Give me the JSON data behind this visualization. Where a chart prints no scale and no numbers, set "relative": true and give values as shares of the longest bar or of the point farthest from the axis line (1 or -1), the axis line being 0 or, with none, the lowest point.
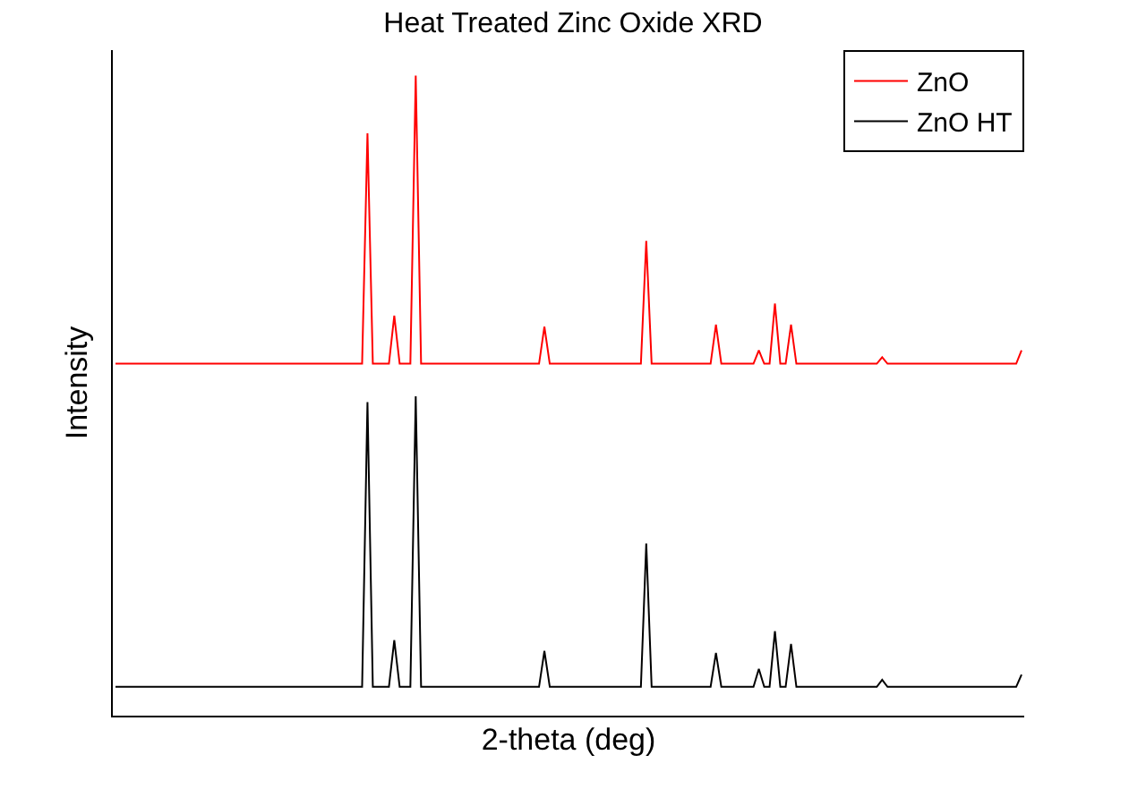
{
  "chart_data": {
    "type": "line",
    "title": "Heat Treated Zinc Oxide XRD",
    "xlabel": "2-theta (deg)",
    "ylabel": "Intensity",
    "relative": true,
    "legend": "top right",
    "marker": "none",
    "line_style": "solid",
    "categories": [
      null,
      null,
      null,
      null,
      null,
      null,
      null,
      null,
      null,
      null,
      null,
      null,
      null,
      null,
      null,
      null,
      null,
      null,
      null,
      null,
      null,
      null,
      null,
      null,
      null,
      null,
      null,
      null,
      null,
      null,
      null,
      null,
      null,
      null,
      null,
      null,
      null,
      null,
      null,
      null,
      null,
      null,
      null,
      null,
      null,
      null,
      null,
      null,
      null,
      null,
      null,
      null,
      null,
      null,
      null,
      null,
      null,
      null,
      null,
      null,
      null,
      null,
      null,
      null,
      null,
      null,
      null,
      null,
      null,
      null,
      null,
      null,
      null,
      null,
      null,
      null,
      null,
      null,
      null,
      null,
      null,
      null,
      null,
      null,
      null,
      null,
      null,
      null,
      null,
      null,
      null,
      null,
      null,
      null,
      null,
      null,
      null,
      null,
      null,
      null,
      null,
      null,
      null,
      null,
      null,
      null,
      null,
      null,
      null,
      null,
      null,
      null,
      null,
      null,
      null,
      null,
      null,
      null,
      null,
      null,
      null,
      null,
      null,
      null,
      null,
      null,
      null,
      null,
      null,
      null,
      null,
      null,
      null,
      null,
      null,
      null,
      null,
      null,
      null,
      null,
      null,
      null,
      null,
      null,
      null,
      null,
      null,
      null,
      null,
      null,
      null,
      null,
      null,
      null,
      null,
      null,
      null,
      null,
      null,
      null,
      null,
      null,
      null,
      null,
      null,
      null,
      null,
      null,
      null,
      null
    ],
    "series": [
      {
        "name": "ZnO",
        "color": "#ff0000",
        "values": [
          0.55,
          0.55,
          0.55,
          0.55,
          0.55,
          0.55,
          0.55,
          0.55,
          0.55,
          0.55,
          0.55,
          0.55,
          0.55,
          0.55,
          0.55,
          0.55,
          0.55,
          0.55,
          0.55,
          0.55,
          0.55,
          0.55,
          0.55,
          0.55,
          0.55,
          0.55,
          0.55,
          0.55,
          0.55,
          0.55,
          0.55,
          0.55,
          0.55,
          0.55,
          0.55,
          0.55,
          0.55,
          0.55,
          0.55,
          0.55,
          0.55,
          0.55,
          0.55,
          0.55,
          0.55,
          0.55,
          0.55,
          0.91,
          0.55,
          0.55,
          0.55,
          0.55,
          0.625,
          0.55,
          0.55,
          0.55,
          1.0,
          0.55,
          0.55,
          0.55,
          0.55,
          0.55,
          0.55,
          0.55,
          0.55,
          0.55,
          0.55,
          0.55,
          0.55,
          0.55,
          0.55,
          0.55,
          0.55,
          0.55,
          0.55,
          0.55,
          0.55,
          0.55,
          0.55,
          0.55,
          0.608,
          0.55,
          0.55,
          0.55,
          0.55,
          0.55,
          0.55,
          0.55,
          0.55,
          0.55,
          0.55,
          0.55,
          0.55,
          0.55,
          0.55,
          0.55,
          0.55,
          0.55,
          0.55,
          0.742,
          0.55,
          0.55,
          0.55,
          0.55,
          0.55,
          0.55,
          0.55,
          0.55,
          0.55,
          0.55,
          0.55,
          0.55,
          0.611,
          0.55,
          0.55,
          0.55,
          0.55,
          0.55,
          0.55,
          0.55,
          0.571,
          0.55,
          0.55,
          0.644,
          0.55,
          0.55,
          0.611,
          0.55,
          0.55,
          0.55,
          0.55,
          0.55,
          0.55,
          0.55,
          0.55,
          0.55,
          0.55,
          0.55,
          0.55,
          0.55,
          0.55,
          0.55,
          0.55,
          0.56,
          0.55,
          0.55,
          0.55,
          0.55,
          0.55,
          0.55,
          0.55,
          0.55,
          0.55,
          0.55,
          0.55,
          0.55,
          0.55,
          0.55,
          0.55,
          0.55,
          0.55,
          0.55,
          0.55,
          0.55,
          0.55,
          0.55,
          0.55,
          0.55,
          0.55,
          0.571
        ]
      },
      {
        "name": "ZnO HT",
        "color": "#000000",
        "values": [
          0.045,
          0.045,
          0.045,
          0.045,
          0.045,
          0.045,
          0.045,
          0.045,
          0.045,
          0.045,
          0.045,
          0.045,
          0.045,
          0.045,
          0.045,
          0.045,
          0.045,
          0.045,
          0.045,
          0.045,
          0.045,
          0.045,
          0.045,
          0.045,
          0.045,
          0.045,
          0.045,
          0.045,
          0.045,
          0.045,
          0.045,
          0.045,
          0.045,
          0.045,
          0.045,
          0.045,
          0.045,
          0.045,
          0.045,
          0.045,
          0.045,
          0.045,
          0.045,
          0.045,
          0.045,
          0.045,
          0.045,
          0.49,
          0.045,
          0.045,
          0.045,
          0.045,
          0.118,
          0.045,
          0.045,
          0.045,
          0.499,
          0.045,
          0.045,
          0.045,
          0.045,
          0.045,
          0.045,
          0.045,
          0.045,
          0.045,
          0.045,
          0.045,
          0.045,
          0.045,
          0.045,
          0.045,
          0.045,
          0.045,
          0.045,
          0.045,
          0.045,
          0.045,
          0.045,
          0.045,
          0.101,
          0.045,
          0.045,
          0.045,
          0.045,
          0.045,
          0.045,
          0.045,
          0.045,
          0.045,
          0.045,
          0.045,
          0.045,
          0.045,
          0.045,
          0.045,
          0.045,
          0.045,
          0.045,
          0.269,
          0.045,
          0.045,
          0.045,
          0.045,
          0.045,
          0.045,
          0.045,
          0.045,
          0.045,
          0.045,
          0.045,
          0.045,
          0.098,
          0.045,
          0.045,
          0.045,
          0.045,
          0.045,
          0.045,
          0.045,
          0.073,
          0.045,
          0.045,
          0.132,
          0.045,
          0.045,
          0.112,
          0.045,
          0.045,
          0.045,
          0.045,
          0.045,
          0.045,
          0.045,
          0.045,
          0.045,
          0.045,
          0.045,
          0.045,
          0.045,
          0.045,
          0.045,
          0.045,
          0.056,
          0.045,
          0.045,
          0.045,
          0.045,
          0.045,
          0.045,
          0.045,
          0.045,
          0.045,
          0.045,
          0.045,
          0.045,
          0.045,
          0.045,
          0.045,
          0.045,
          0.045,
          0.045,
          0.045,
          0.045,
          0.045,
          0.045,
          0.045,
          0.045,
          0.045,
          0.064
        ]
      }
    ]
  }
}
